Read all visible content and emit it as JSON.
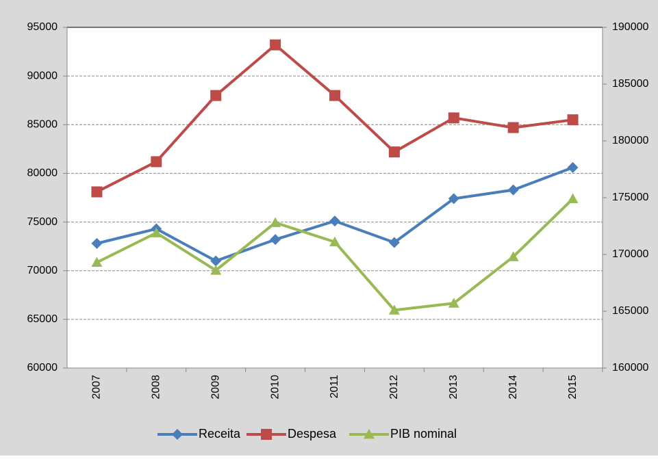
{
  "chart_data": {
    "type": "line",
    "categories": [
      "2007",
      "2008",
      "2009",
      "2010",
      "2011",
      "2012",
      "2013",
      "2014",
      "2015"
    ],
    "series": [
      {
        "name": "Receita",
        "color": "#4a7ebb",
        "marker": "diamond",
        "values": [
          72800,
          74300,
          71000,
          73200,
          75100,
          72900,
          77400,
          78300,
          80600
        ]
      },
      {
        "name": "Despesa",
        "color": "#be4b48",
        "marker": "square",
        "values": [
          78100,
          81200,
          88000,
          93200,
          88000,
          82200,
          85700,
          84700,
          85500
        ]
      },
      {
        "name": "PIB nominal",
        "color": "#98b954",
        "marker": "triangle",
        "axis": "y2",
        "values": [
          169300,
          171900,
          168600,
          172800,
          171100,
          165100,
          165700,
          169800,
          174900
        ]
      }
    ],
    "ylim": [
      60000,
      95000
    ],
    "yticks": [
      60000,
      65000,
      70000,
      75000,
      80000,
      85000,
      90000,
      95000
    ],
    "y2lim": [
      160000,
      190000
    ],
    "y2ticks": [
      160000,
      165000,
      170000,
      175000,
      180000,
      185000,
      190000
    ],
    "grid": true,
    "legend": "bottom"
  }
}
